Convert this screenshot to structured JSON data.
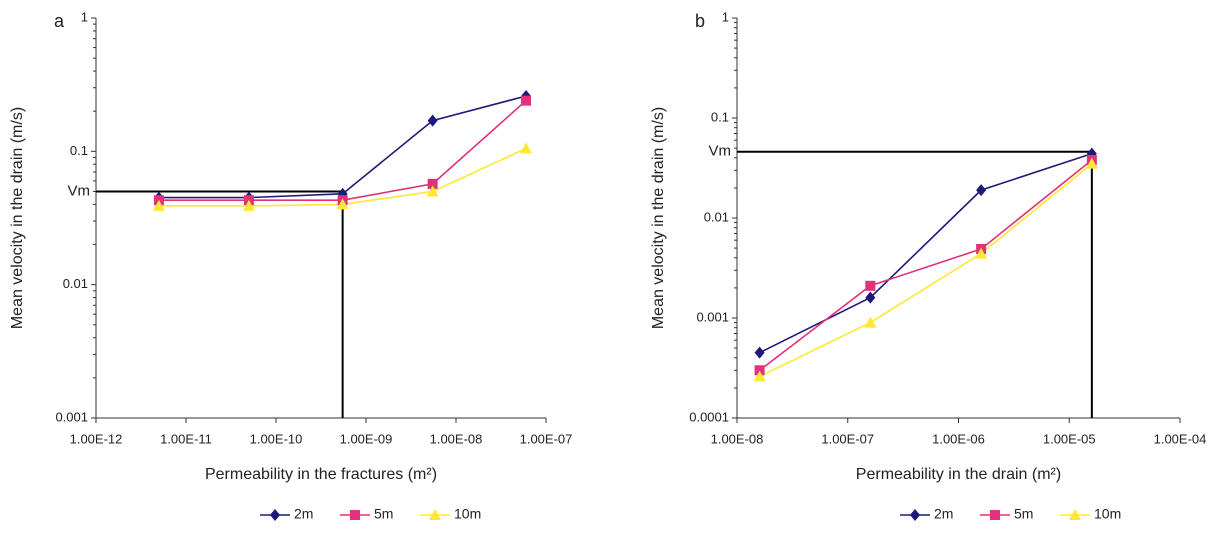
{
  "chart_data": [
    {
      "type": "line",
      "panel_label": "a",
      "x_label": "Permeability in the fractures (m²)",
      "y_label": "Mean velocity in the drain (m/s)",
      "x": [
        5e-12,
        5e-11,
        5.5e-10,
        5.5e-09,
        6e-08
      ],
      "series": [
        {
          "name": "2m",
          "color": "#1f1a7a",
          "marker": "diamond",
          "values": [
            0.045,
            0.045,
            0.048,
            0.17,
            0.26
          ]
        },
        {
          "name": "5m",
          "color": "#e0317a",
          "marker": "square",
          "values": [
            0.043,
            0.043,
            0.043,
            0.057,
            0.24
          ]
        },
        {
          "name": "10m",
          "color": "#ffe833",
          "marker": "triangle",
          "values": [
            0.039,
            0.039,
            0.04,
            0.05,
            0.105
          ]
        }
      ],
      "xscale": "log",
      "yscale": "log",
      "xlim": [
        1e-12,
        1e-07
      ],
      "xticks": [
        {
          "value": 1e-12,
          "label": "1.00E-12"
        },
        {
          "value": 1e-11,
          "label": "1.00E-11"
        },
        {
          "value": 1e-10,
          "label": "1.00E-10"
        },
        {
          "value": 1e-09,
          "label": "1.00E-09"
        },
        {
          "value": 1e-08,
          "label": "1.00E-08"
        },
        {
          "value": 1e-07,
          "label": "1.00E-07"
        }
      ],
      "ylim": [
        0.001,
        1
      ],
      "yticks": [
        0.001,
        0.01,
        0.1,
        1
      ],
      "reference": {
        "label": "Vm",
        "x": 5.5e-10,
        "y": 0.05
      }
    },
    {
      "type": "line",
      "panel_label": "b",
      "x_label": "Permeability in the drain (m²)",
      "y_label": "Mean velocity in the drain (m/s)",
      "x": [
        1.6e-08,
        1.6e-07,
        1.6e-06,
        1.6e-05
      ],
      "series": [
        {
          "name": "2m",
          "color": "#1f1a7a",
          "marker": "diamond",
          "values": [
            0.00045,
            0.0016,
            0.019,
            0.044
          ]
        },
        {
          "name": "5m",
          "color": "#e0317a",
          "marker": "square",
          "values": [
            0.0003,
            0.0021,
            0.0049,
            0.038
          ]
        },
        {
          "name": "10m",
          "color": "#ffe833",
          "marker": "triangle",
          "values": [
            0.00026,
            0.0009,
            0.0044,
            0.035
          ]
        }
      ],
      "xscale": "log",
      "yscale": "log",
      "xlim": [
        1e-08,
        0.0001
      ],
      "xticks": [
        {
          "value": 1e-08,
          "label": "1.00E-08"
        },
        {
          "value": 1e-07,
          "label": "1.00E-07"
        },
        {
          "value": 1e-06,
          "label": "1.00E-06"
        },
        {
          "value": 1e-05,
          "label": "1.00E-05"
        },
        {
          "value": 0.0001,
          "label": "1.00E-04"
        }
      ],
      "ylim": [
        0.0001,
        1
      ],
      "yticks": [
        0.0001,
        0.001,
        0.01,
        0.1,
        1
      ],
      "reference": {
        "label": "Vm",
        "x": 1.6e-05,
        "y": 0.046
      }
    }
  ]
}
